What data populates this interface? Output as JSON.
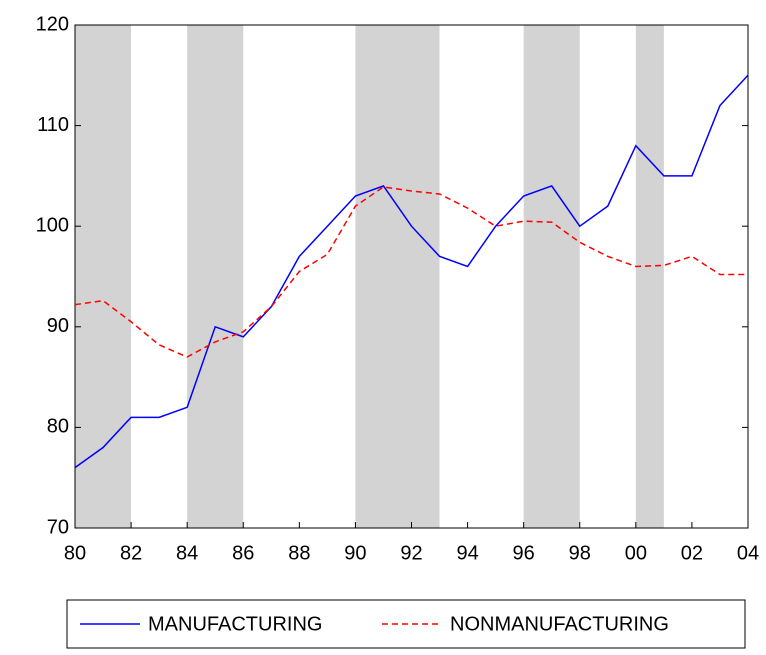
{
  "chart_data": {
    "type": "line",
    "x": [
      1980,
      1981,
      1982,
      1983,
      1984,
      1985,
      1986,
      1987,
      1988,
      1989,
      1990,
      1991,
      1992,
      1993,
      1994,
      1995,
      1996,
      1997,
      1998,
      1999,
      2000,
      2001,
      2002,
      2003,
      2004
    ],
    "series": [
      {
        "name": "MANUFACTURING",
        "color": "#0000ff",
        "line_style": "solid",
        "values": [
          76,
          78,
          81,
          81,
          82,
          90,
          89,
          92,
          97,
          100,
          103,
          104,
          100,
          97,
          96,
          100,
          103,
          104,
          100,
          102,
          108,
          105,
          105,
          112,
          115
        ]
      },
      {
        "name": "NONMANUFACTURING",
        "color": "#ff0000",
        "line_style": "dashed",
        "values": [
          92.2,
          92.6,
          90.5,
          88.2,
          87,
          88.5,
          89.5,
          92,
          95.5,
          97.2,
          102,
          103.9,
          103.5,
          103.2,
          101.8,
          100,
          100.5,
          100.4,
          98.4,
          97,
          96,
          96.1,
          97,
          95.2,
          95.2
        ]
      }
    ],
    "shaded_periods": [
      [
        1980,
        1982
      ],
      [
        1984,
        1986
      ],
      [
        1990,
        1993
      ],
      [
        1996,
        1998
      ],
      [
        2000,
        2001
      ]
    ],
    "shade_color": "#d3d3d3",
    "xlim": [
      1980,
      2004
    ],
    "xticks": [
      {
        "value": 1980,
        "label": "80"
      },
      {
        "value": 1982,
        "label": "82"
      },
      {
        "value": 1984,
        "label": "84"
      },
      {
        "value": 1986,
        "label": "86"
      },
      {
        "value": 1988,
        "label": "88"
      },
      {
        "value": 1990,
        "label": "90"
      },
      {
        "value": 1992,
        "label": "92"
      },
      {
        "value": 1994,
        "label": "94"
      },
      {
        "value": 1996,
        "label": "96"
      },
      {
        "value": 1998,
        "label": "98"
      },
      {
        "value": 2000,
        "label": "00"
      },
      {
        "value": 2002,
        "label": "02"
      },
      {
        "value": 2004,
        "label": "04"
      }
    ],
    "ylim": [
      70,
      120
    ],
    "yticks": [
      70,
      80,
      90,
      100,
      110,
      120
    ]
  }
}
